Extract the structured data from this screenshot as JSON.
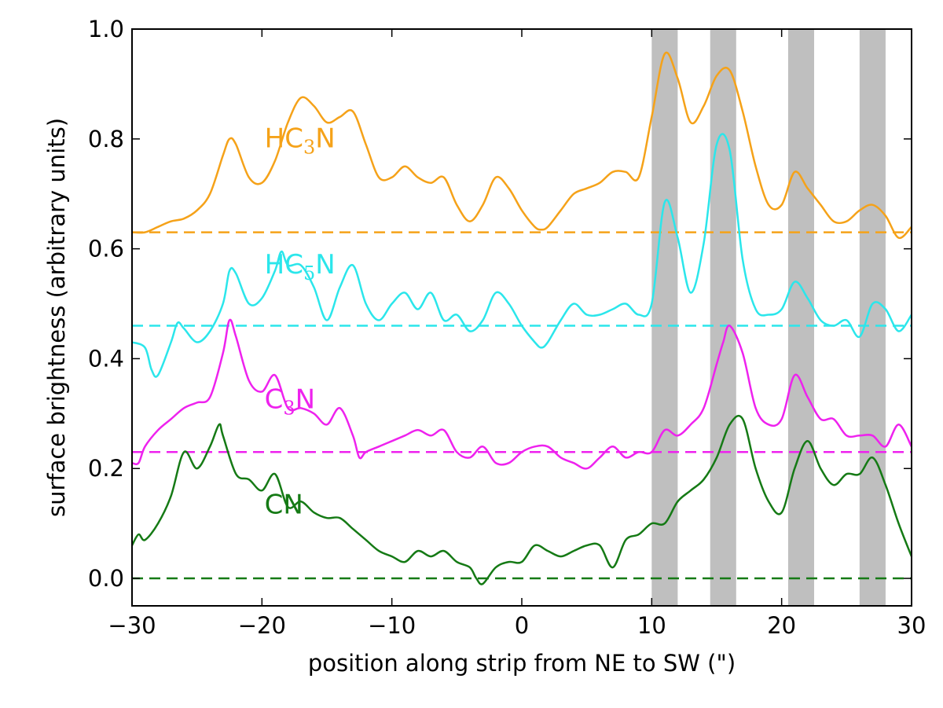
{
  "chart_data": {
    "type": "line",
    "title": "",
    "xlabel": "position along strip from NE to SW (\")",
    "ylabel": "surface brightness (arbitrary units)",
    "xlim": [
      -30,
      30
    ],
    "ylim": [
      -0.05,
      1.0
    ],
    "xticks": [
      -30,
      -20,
      -10,
      0,
      10,
      20,
      30
    ],
    "xtick_labels": [
      "−30",
      "−20",
      "−10",
      "0",
      "10",
      "20",
      "30"
    ],
    "yticks": [
      0.0,
      0.2,
      0.4,
      0.6,
      0.8,
      1.0
    ],
    "ytick_labels": [
      "0.0",
      "0.2",
      "0.4",
      "0.6",
      "0.8",
      "1.0"
    ],
    "grid": false,
    "shaded_bands": [
      [
        10,
        12
      ],
      [
        14.5,
        16.5
      ],
      [
        20.5,
        22.5
      ],
      [
        26,
        28
      ]
    ],
    "band_color": "#bfbfbf",
    "series": [
      {
        "name": "HC3N",
        "label_main": "HC",
        "label_sub": "3",
        "label_tail": "N",
        "color": "#f5a219",
        "baseline": 0.63,
        "x": [
          -30,
          -29,
          -28,
          -27,
          -26,
          -25,
          -24,
          -23,
          -22.5,
          -22,
          -21,
          -20,
          -19,
          -18,
          -17,
          -16,
          -15,
          -14,
          -13,
          -12,
          -11,
          -10,
          -9,
          -8,
          -7,
          -6,
          -5,
          -4,
          -3,
          -2,
          -1,
          0,
          1,
          1.5,
          2,
          3,
          4,
          5,
          6,
          7,
          8,
          9,
          10,
          11,
          12,
          13,
          14,
          15,
          16,
          17,
          18,
          19,
          20,
          21,
          22,
          23,
          24,
          25,
          26,
          27,
          28,
          29,
          30
        ],
        "values": [
          0.63,
          0.63,
          0.64,
          0.65,
          0.655,
          0.67,
          0.7,
          0.77,
          0.8,
          0.79,
          0.73,
          0.72,
          0.76,
          0.83,
          0.875,
          0.86,
          0.83,
          0.84,
          0.85,
          0.79,
          0.73,
          0.73,
          0.75,
          0.73,
          0.72,
          0.73,
          0.68,
          0.65,
          0.68,
          0.73,
          0.71,
          0.67,
          0.64,
          0.635,
          0.64,
          0.67,
          0.7,
          0.71,
          0.72,
          0.74,
          0.74,
          0.73,
          0.84,
          0.955,
          0.91,
          0.83,
          0.86,
          0.915,
          0.925,
          0.85,
          0.75,
          0.68,
          0.68,
          0.74,
          0.71,
          0.68,
          0.65,
          0.65,
          0.67,
          0.68,
          0.66,
          0.62,
          0.64
        ]
      },
      {
        "name": "HC5N",
        "label_main": "HC",
        "label_sub": "5",
        "label_tail": "N",
        "color": "#2be6eb",
        "baseline": 0.46,
        "x": [
          -30,
          -29,
          -28.5,
          -28,
          -27,
          -26.5,
          -26,
          -25,
          -24,
          -23,
          -22.5,
          -22,
          -21,
          -20,
          -19,
          -18.5,
          -18,
          -17,
          -16,
          -15,
          -14,
          -13,
          -12,
          -11,
          -10,
          -9,
          -8,
          -7,
          -6,
          -5,
          -4,
          -3,
          -2,
          -1,
          0,
          1,
          1.5,
          2,
          3,
          4,
          5,
          6,
          7,
          8,
          9,
          10,
          11,
          12,
          13,
          14,
          15,
          16,
          17,
          18,
          19,
          20,
          21,
          22,
          23,
          24,
          25,
          26,
          27,
          28,
          29,
          30
        ],
        "values": [
          0.43,
          0.42,
          0.38,
          0.37,
          0.43,
          0.465,
          0.455,
          0.43,
          0.45,
          0.5,
          0.56,
          0.555,
          0.5,
          0.51,
          0.56,
          0.595,
          0.57,
          0.57,
          0.53,
          0.47,
          0.53,
          0.57,
          0.5,
          0.47,
          0.5,
          0.52,
          0.49,
          0.52,
          0.47,
          0.48,
          0.45,
          0.47,
          0.52,
          0.5,
          0.46,
          0.43,
          0.42,
          0.43,
          0.47,
          0.5,
          0.48,
          0.48,
          0.49,
          0.5,
          0.48,
          0.5,
          0.685,
          0.62,
          0.52,
          0.61,
          0.79,
          0.78,
          0.58,
          0.49,
          0.48,
          0.49,
          0.54,
          0.51,
          0.47,
          0.46,
          0.47,
          0.44,
          0.5,
          0.49,
          0.45,
          0.48
        ]
      },
      {
        "name": "C3N",
        "label_main": "C",
        "label_sub": "3",
        "label_tail": "N",
        "color": "#ee22ee",
        "baseline": 0.23,
        "x": [
          -30,
          -29.5,
          -29,
          -28,
          -27,
          -26,
          -25,
          -24,
          -23,
          -22.5,
          -22,
          -21,
          -20,
          -19,
          -18,
          -17,
          -16,
          -15,
          -14,
          -13,
          -12.5,
          -12,
          -11,
          -10,
          -9,
          -8,
          -7,
          -6,
          -5,
          -4,
          -3,
          -2,
          -1,
          0,
          1,
          2,
          3,
          4,
          5,
          6,
          7,
          8,
          9,
          10,
          11,
          12,
          13,
          14,
          15,
          15.5,
          16,
          17,
          18,
          19,
          20,
          21,
          22,
          23,
          24,
          25,
          26,
          27,
          28,
          29,
          30
        ],
        "values": [
          0.21,
          0.21,
          0.24,
          0.27,
          0.29,
          0.31,
          0.32,
          0.33,
          0.41,
          0.47,
          0.44,
          0.36,
          0.34,
          0.37,
          0.31,
          0.31,
          0.3,
          0.28,
          0.31,
          0.26,
          0.22,
          0.23,
          0.24,
          0.25,
          0.26,
          0.27,
          0.26,
          0.27,
          0.23,
          0.22,
          0.24,
          0.21,
          0.21,
          0.23,
          0.24,
          0.24,
          0.22,
          0.21,
          0.2,
          0.22,
          0.24,
          0.22,
          0.23,
          0.23,
          0.27,
          0.26,
          0.28,
          0.31,
          0.39,
          0.43,
          0.46,
          0.41,
          0.31,
          0.28,
          0.29,
          0.37,
          0.33,
          0.29,
          0.29,
          0.26,
          0.26,
          0.26,
          0.24,
          0.28,
          0.24
        ]
      },
      {
        "name": "CN",
        "label_main": "CN",
        "label_sub": "",
        "label_tail": "",
        "color": "#157a15",
        "baseline": 0.0,
        "x": [
          -30,
          -29.5,
          -29,
          -28,
          -27,
          -26,
          -25,
          -24,
          -23.3,
          -23,
          -22,
          -21,
          -20,
          -19,
          -18,
          -17,
          -16,
          -15,
          -14,
          -13,
          -12,
          -11,
          -10,
          -9,
          -8,
          -7,
          -6,
          -5,
          -4,
          -3.5,
          -3,
          -2,
          -1,
          0,
          1,
          2,
          3,
          4,
          5,
          6,
          7,
          8,
          9,
          10,
          11,
          12,
          13,
          14,
          15,
          16,
          17,
          18,
          19,
          20,
          21,
          22,
          23,
          24,
          25,
          26,
          27,
          28,
          29,
          30
        ],
        "values": [
          0.06,
          0.08,
          0.07,
          0.1,
          0.15,
          0.23,
          0.2,
          0.24,
          0.28,
          0.26,
          0.19,
          0.18,
          0.16,
          0.19,
          0.13,
          0.14,
          0.12,
          0.11,
          0.11,
          0.09,
          0.07,
          0.05,
          0.04,
          0.03,
          0.05,
          0.04,
          0.05,
          0.03,
          0.02,
          0.0,
          -0.01,
          0.02,
          0.03,
          0.03,
          0.06,
          0.05,
          0.04,
          0.05,
          0.06,
          0.06,
          0.02,
          0.07,
          0.08,
          0.1,
          0.1,
          0.14,
          0.16,
          0.18,
          0.22,
          0.28,
          0.29,
          0.2,
          0.14,
          0.12,
          0.2,
          0.25,
          0.2,
          0.17,
          0.19,
          0.19,
          0.22,
          0.17,
          0.1,
          0.04
        ]
      }
    ]
  }
}
